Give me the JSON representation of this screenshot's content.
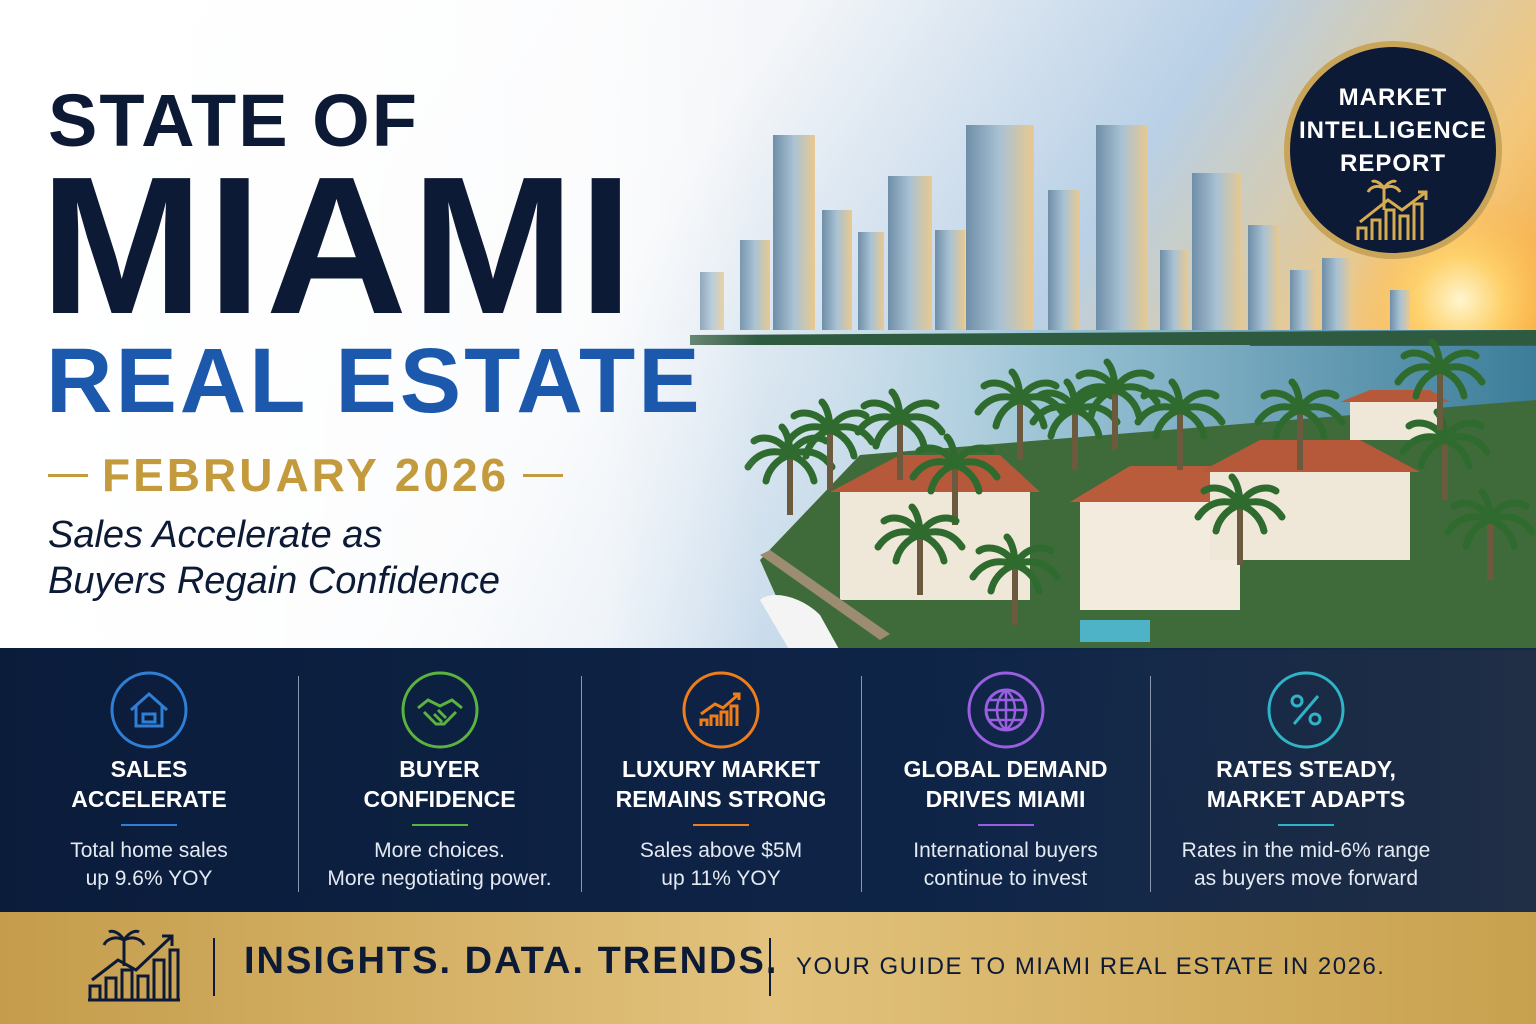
{
  "header": {
    "line1": "STATE OF",
    "line2": "MIAMI",
    "line3": "REAL ESTATE",
    "date": "FEBRUARY 2026",
    "subtitle": [
      "Sales Accelerate as",
      "Buyers Regain Confidence"
    ]
  },
  "badge": {
    "lines": [
      "MARKET",
      "INTELLIGENCE",
      "REPORT"
    ]
  },
  "highlights": [
    {
      "title": [
        "SALES",
        "ACCELERATE"
      ],
      "text": [
        "Total home sales",
        "up 9.6% YOY"
      ]
    },
    {
      "title": [
        "BUYER",
        "CONFIDENCE"
      ],
      "text": [
        "More choices.",
        "More negotiating power."
      ]
    },
    {
      "title": [
        "LUXURY MARKET",
        "REMAINS STRONG"
      ],
      "text": [
        "Sales above $5M",
        "up 11% YOY"
      ]
    },
    {
      "title": [
        "GLOBAL DEMAND",
        "DRIVES MIAMI"
      ],
      "text": [
        "International buyers",
        "continue to invest"
      ]
    },
    {
      "title": [
        "RATES STEADY,",
        "MARKET ADAPTS"
      ],
      "text": [
        "Rates in the mid-6% range",
        "as buyers move forward"
      ]
    }
  ],
  "footer": {
    "tagline": "INSIGHTS. DATA. TRENDS.",
    "guide": "YOUR GUIDE TO MIAMI REAL ESTATE IN 2026."
  }
}
